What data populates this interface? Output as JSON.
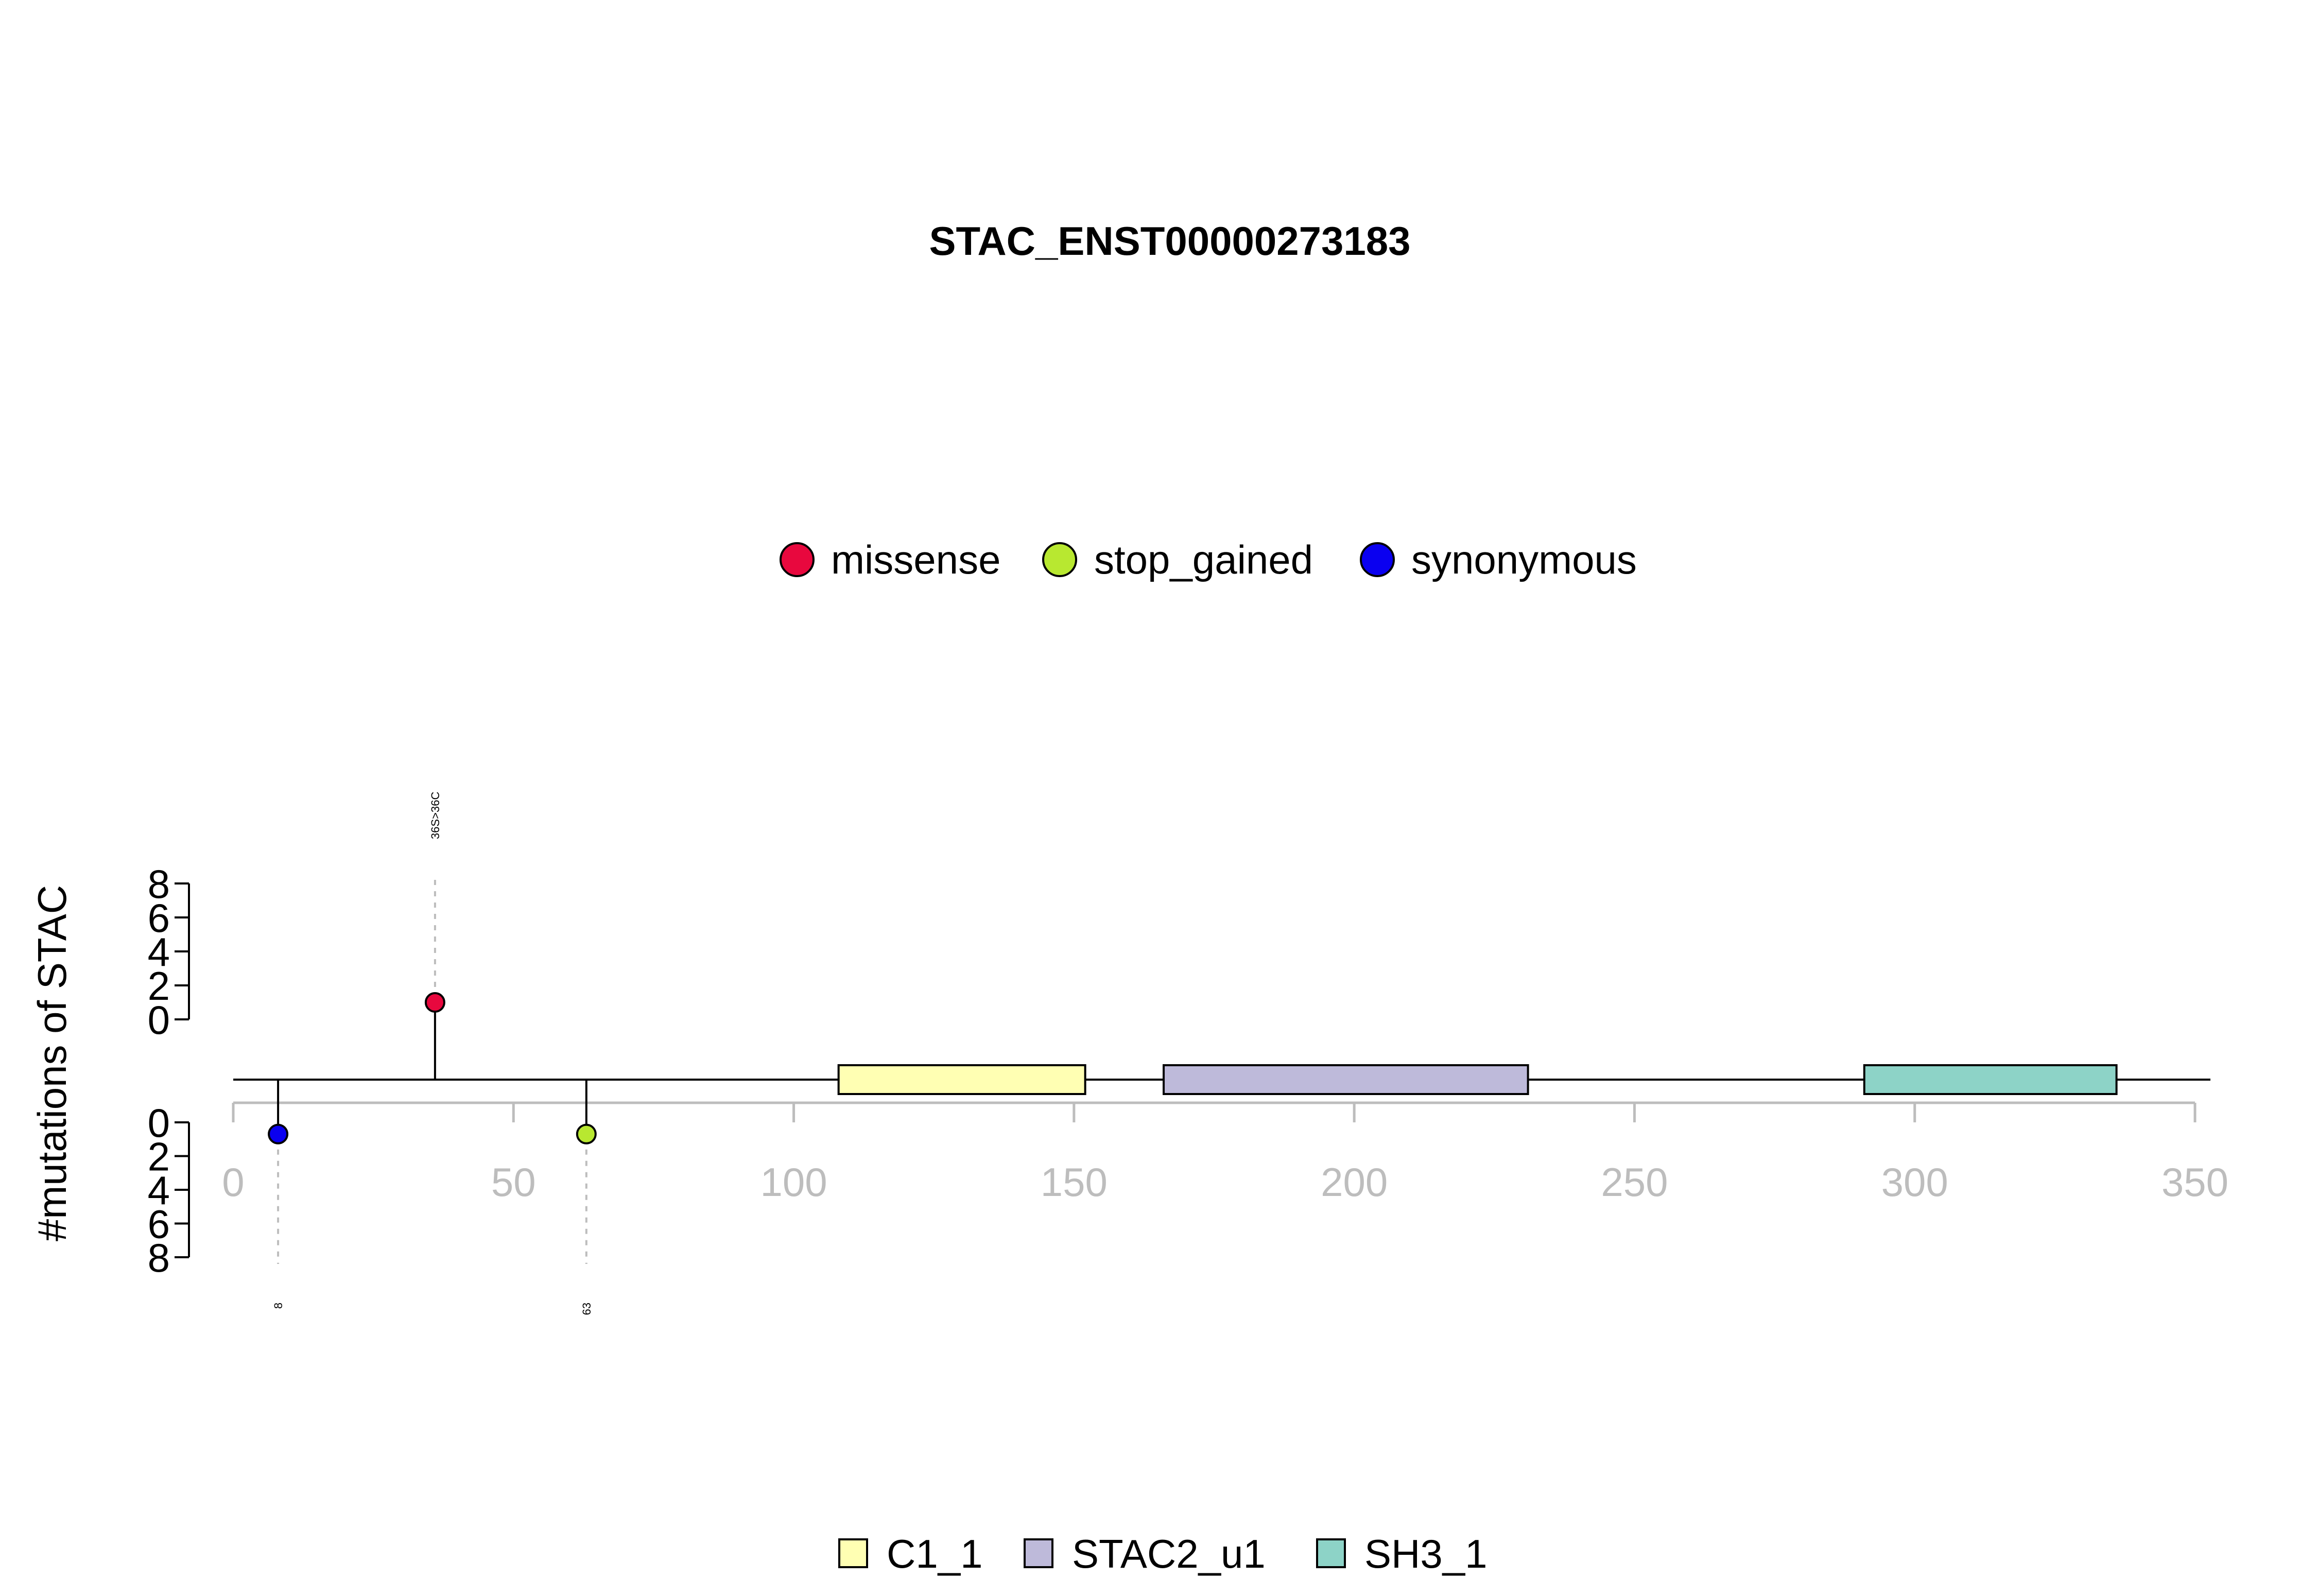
{
  "chart_data": {
    "type": "lollipop",
    "title": "STAC_ENST00000273183",
    "ylabel": "#mutations of STAC",
    "protein_length": 350,
    "xlim": [
      0,
      350
    ],
    "x_ticks": [
      "0",
      "50",
      "100",
      "150",
      "200",
      "250",
      "300",
      "350"
    ],
    "y_ticks": [
      "0",
      "2",
      "4",
      "6",
      "8"
    ],
    "ylim": [
      0,
      8
    ],
    "mutation_legend": [
      {
        "label": "missense",
        "color": "#E8083E"
      },
      {
        "label": "stop_gained",
        "color": "#B8E830"
      },
      {
        "label": "synonymous",
        "color": "#0A00F0"
      }
    ],
    "mutations": [
      {
        "position": 8,
        "count": 1,
        "type": "synonymous",
        "label": "8",
        "side": "bottom"
      },
      {
        "position": 36,
        "count": 1,
        "type": "missense",
        "label": "36S>36C",
        "side": "top"
      },
      {
        "position": 63,
        "count": 1,
        "type": "stop_gained",
        "label": "63",
        "side": "bottom"
      }
    ],
    "domains": [
      {
        "name": "C1_1",
        "start": 108,
        "end": 152,
        "color": "#FFFFB3"
      },
      {
        "name": "STAC2_u1",
        "start": 166,
        "end": 231,
        "color": "#BEBADA"
      },
      {
        "name": "SH3_1",
        "start": 291,
        "end": 336,
        "color": "#8DD3C7"
      }
    ]
  }
}
